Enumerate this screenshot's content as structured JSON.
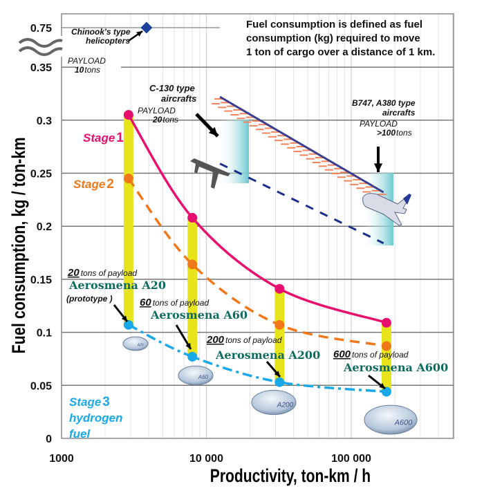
{
  "chart_data": {
    "type": "line",
    "xlabel": "Productivity, ton-km / h",
    "ylabel": "Fuel consumption, kg / ton-km",
    "x_scale": "log",
    "xlim": [
      1000,
      500000
    ],
    "ylim": [
      0,
      0.35
    ],
    "y_break": {
      "from": 0.35,
      "to": 0.75
    },
    "x_ticks": [
      {
        "v": 1000,
        "label": "1000"
      },
      {
        "v": 10000,
        "label": "10 000"
      },
      {
        "v": 100000,
        "label": "100 000"
      }
    ],
    "y_ticks": [
      {
        "v": 0,
        "label": "0"
      },
      {
        "v": 0.05,
        "label": "0.05"
      },
      {
        "v": 0.1,
        "label": "0.1"
      },
      {
        "v": 0.15,
        "label": "0.15"
      },
      {
        "v": 0.2,
        "label": "0.2"
      },
      {
        "v": 0.25,
        "label": "0.25"
      },
      {
        "v": 0.3,
        "label": "0.3"
      },
      {
        "v": 0.35,
        "label": "0.35"
      },
      {
        "v": 0.75,
        "label": "0.75"
      }
    ],
    "grid": true,
    "note": [
      "Fuel consumption is defined as fuel",
      "consumption (kg) required to move",
      "1 ton of cargo over a distance of 1 km."
    ],
    "series": [
      {
        "name": "Stage 1",
        "label_word": "Stage",
        "label_num": "1",
        "color": "#e8106e",
        "style": "solid",
        "x": [
          2900,
          8000,
          32000,
          175000
        ],
        "y": [
          0.305,
          0.208,
          0.141,
          0.109
        ]
      },
      {
        "name": "Stage 2",
        "label_word": "Stage",
        "label_num": "2",
        "color": "#f07818",
        "style": "dashed",
        "x": [
          2900,
          8000,
          32000,
          175000
        ],
        "y": [
          0.245,
          0.164,
          0.107,
          0.087
        ]
      },
      {
        "name": "Stage 3 hydrogen fuel",
        "label_word": "Stage",
        "label_num": "3",
        "label_lines": [
          "hydrogen",
          "fuel"
        ],
        "color": "#19a8e8",
        "style": "dashdot",
        "x": [
          2900,
          8000,
          32000,
          175000
        ],
        "y": [
          0.107,
          0.077,
          0.053,
          0.044
        ]
      }
    ],
    "aircraft_lines": [
      {
        "color": "#3a3f8f",
        "style": "solid-hatched",
        "hatch_color": "#f5835a",
        "x": [
          12400,
          167000
        ],
        "y": [
          0.322,
          0.232
        ]
      },
      {
        "color": "#1b2f8a",
        "style": "dashed",
        "x": [
          12400,
          167000
        ],
        "y": [
          0.259,
          0.184
        ]
      }
    ],
    "helicopter_point": {
      "x": 3860,
      "y": 0.75,
      "color": "#1d3f9e"
    },
    "annotations": {
      "helicopter": [
        "Chinook's type",
        "helicopters"
      ],
      "payload10": {
        "word": "PAYLOAD",
        "num": "10",
        "unit": "tons"
      },
      "c130": [
        "C-130 type",
        "aircrafts"
      ],
      "payload20": {
        "word": "PAYLOAD",
        "num": "20",
        "unit": "tons"
      },
      "b747": [
        "B747, A380 type",
        "aircrafts"
      ],
      "payload100": {
        "word": "PAYLOAD",
        "num": ">100",
        "unit": "tons"
      },
      "airships": [
        {
          "num": "20",
          "text": "tons of payload",
          "name": "Aerosmena A20",
          "extra": "(prototype )",
          "badge": "A20"
        },
        {
          "num": "60",
          "text": "tons of payload",
          "name": "Aerosmena A60",
          "badge": "A60"
        },
        {
          "num": "200",
          "text": "tons of payload",
          "name": "Aerosmena A200",
          "badge": "A200"
        },
        {
          "num": "600",
          "text": "tons of payload",
          "name": "Aerosmena A600",
          "badge": "A600"
        }
      ]
    },
    "bar_color": "#e8e41c",
    "band_color": "#7fcfd6"
  }
}
